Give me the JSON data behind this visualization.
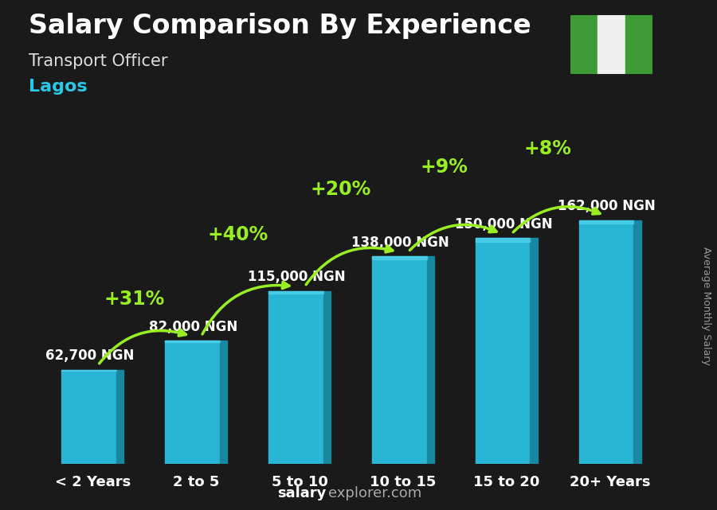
{
  "title": "Salary Comparison By Experience",
  "subtitle": "Transport Officer",
  "city": "Lagos",
  "ylabel": "Average Monthly Salary",
  "footer_bold": "salary",
  "footer_regular": "explorer.com",
  "categories": [
    "< 2 Years",
    "2 to 5",
    "5 to 10",
    "10 to 15",
    "15 to 20",
    "20+ Years"
  ],
  "values": [
    62700,
    82000,
    115000,
    138000,
    150000,
    162000
  ],
  "value_labels": [
    "62,700 NGN",
    "82,000 NGN",
    "115,000 NGN",
    "138,000 NGN",
    "150,000 NGN",
    "162,000 NGN"
  ],
  "pct_labels": [
    null,
    "+31%",
    "+40%",
    "+20%",
    "+9%",
    "+8%"
  ],
  "bar_color": "#29b6d4",
  "bar_color_dark": "#1888a0",
  "pct_color": "#99ee22",
  "value_label_color": "#ffffff",
  "title_color": "#ffffff",
  "subtitle_color": "#dddddd",
  "city_color": "#29c8e8",
  "footer_bold_color": "#ffffff",
  "footer_regular_color": "#aaaaaa",
  "bg_color": "#1a1a1a",
  "ylim": [
    0,
    210000
  ],
  "title_fontsize": 24,
  "subtitle_fontsize": 15,
  "city_fontsize": 16,
  "bar_label_fontsize": 12,
  "pct_fontsize": 17,
  "xlabel_fontsize": 13,
  "footer_fontsize": 13,
  "ylabel_fontsize": 9,
  "nigeria_flag_green": "#3d9b35",
  "nigeria_flag_white": "#f0f0f0",
  "arrow_color": "#99ee22",
  "arrow_lw": 2.5
}
